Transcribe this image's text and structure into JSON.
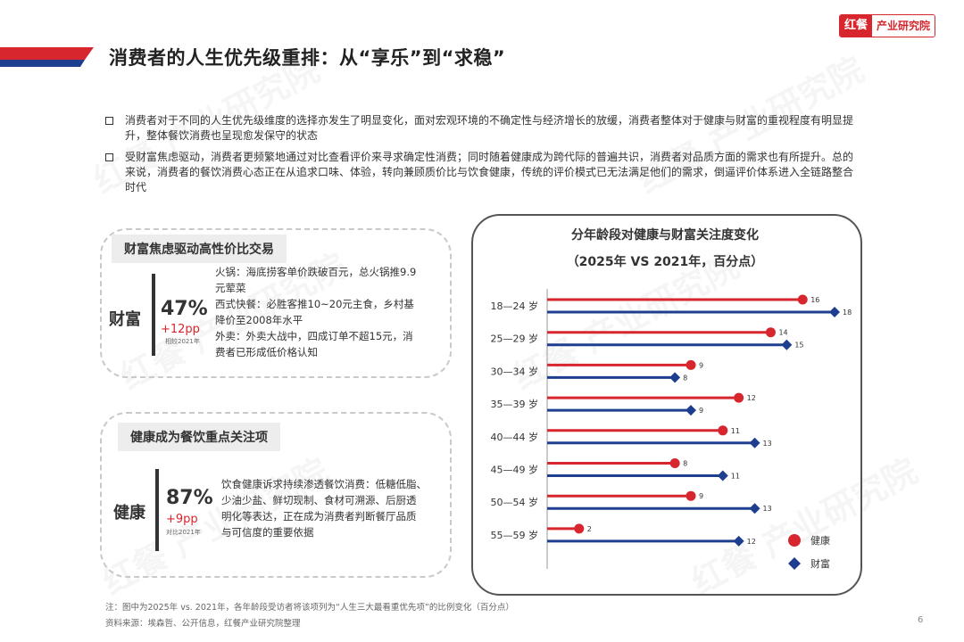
{
  "header": {
    "title": "消费者的人生优先级重排：从“享乐”到“求稳”",
    "logo_left": "红餐",
    "logo_right": "产业研究院",
    "accent_red": "#d7262d",
    "accent_blue": "#1e3f8f"
  },
  "bullets": [
    "消费者对于不同的人生优先级维度的选择亦发生了明显变化，面对宏观环境的不确定性与经济增长的放缓，消费者整体对于健康与财富的重视程度有明显提升，整体餐饮消费也呈现愈发保守的状态",
    "受财富焦虑驱动，消费者更频繁地通过对比查看评价来寻求确定性消费；同时随着健康成为跨代际的普遍共识，消费者对品质方面的需求也有所提升。总的来说，消费者的餐饮消费心态正在从追求口味、体验，转向兼顾质价比与饮食健康，传统的评价模式已无法满足他们的需求，倒逼评价体系进入全链路整合时代"
  ],
  "wealth_box": {
    "title": "财富焦虑驱动高性价比交易",
    "label": "财富",
    "pct": "47%",
    "delta": "+12pp",
    "compare": "相较2021年",
    "lines": [
      "火锅：海底捞客单价跌破百元，总火锅推9.9",
      "元荤菜",
      "西式快餐：必胜客推10~20元主食，乡村基",
      "降价至2008年水平",
      "外卖：外卖大战中，四成订单不超15元，消",
      "费者已形成低价格认知"
    ]
  },
  "health_box": {
    "title": "健康成为餐饮重点关注项",
    "label": "健康",
    "pct": "87%",
    "delta": "+9pp",
    "compare": "对比2021年",
    "lines": [
      "饮食健康诉求持续渗透餐饮消费：低糖低脂、",
      "少油少盐、鲜切现制、食材可溯源、后厨透",
      "明化等表达，正在成为消费者判断餐厅品质",
      "与可信度的重要依据"
    ]
  },
  "chart_data": {
    "type": "dumbbell-bar",
    "title": "分年龄段对健康与财富关注度变化",
    "subtitle": "（2025年 VS 2021年，百分点）",
    "categories": [
      "18—24 岁",
      "25—29 岁",
      "30—34 岁",
      "35—39 岁",
      "40—44 岁",
      "45—49 岁",
      "50—54 岁",
      "55—59 岁"
    ],
    "series": [
      {
        "name": "健康",
        "marker": "circle",
        "color": "#d7262d",
        "values": [
          16,
          14,
          9,
          12,
          11,
          8,
          9,
          2
        ]
      },
      {
        "name": "财富",
        "marker": "diamond",
        "color": "#1e3f8f",
        "values": [
          18,
          15,
          8,
          9,
          13,
          11,
          13,
          12
        ]
      }
    ],
    "xlim": [
      0,
      18
    ],
    "legend": "bottom-right",
    "grid": false
  },
  "footer": {
    "note": "注：图中为2025年 vs. 2021年，各年龄段受访者将该项列为“人生三大最看重优先项”的比例变化（百分点）",
    "source": "资料来源：埃森哲、公开信息，红餐产业研究院整理",
    "page": "6"
  }
}
